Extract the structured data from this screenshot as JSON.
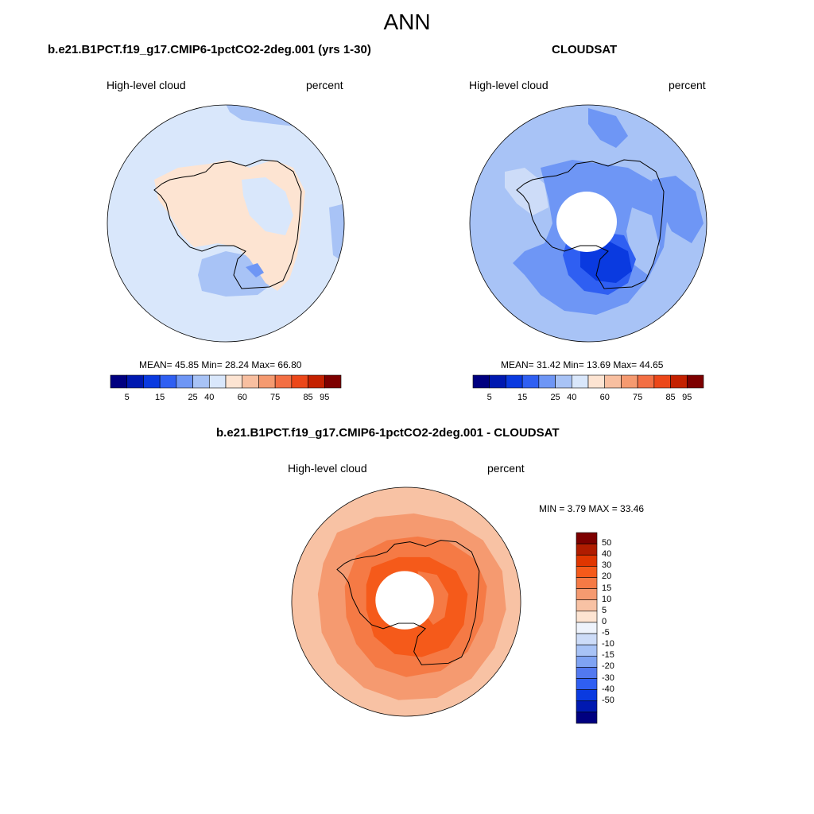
{
  "main_title": "ANN",
  "panels": [
    {
      "title": "b.e21.B1PCT.f19_g17.CMIP6-1pctCO2-2deg.001 (yrs 1-30)",
      "left_label": "High-level cloud",
      "right_label": "percent",
      "stats_text": "MEAN=  45.85  Min=  28.24  Max=  66.80",
      "mean": 45.85,
      "min": 28.24,
      "max": 66.8
    },
    {
      "title": "CLOUDSAT",
      "left_label": "High-level cloud",
      "right_label": "percent",
      "stats_text": "MEAN=  31.42  Min=  13.69  Max=  44.65",
      "mean": 31.42,
      "min": 13.69,
      "max": 44.65
    },
    {
      "title": "b.e21.B1PCT.f19_g17.CMIP6-1pctCO2-2deg.001 - CLOUDSAT",
      "left_label": "High-level cloud",
      "right_label": "percent",
      "stats_text": "MIN =   3.79 MAX =  33.46",
      "min": 3.79,
      "max": 33.46
    }
  ],
  "colorbar_top": {
    "colors": [
      "#000080",
      "#0019b0",
      "#0a3ae0",
      "#2f5ff2",
      "#6e96f5",
      "#a8c3f6",
      "#d9e7fb",
      "#fde4d2",
      "#f8bfa0",
      "#f59a70",
      "#f36f44",
      "#ec4719",
      "#c42100",
      "#7d0000"
    ],
    "ticks": [
      "5",
      "15",
      "25",
      "40",
      "60",
      "75",
      "85",
      "95"
    ]
  },
  "colorbar_diff": {
    "colors": [
      "#7d0000",
      "#b01c00",
      "#e03600",
      "#f55a1a",
      "#f57a45",
      "#f59a70",
      "#f8c2a4",
      "#fde4d2",
      "#eef3fc",
      "#cddcf8",
      "#a8c3f6",
      "#7fa3f3",
      "#5279f0",
      "#2f5ff2",
      "#0a3ae0",
      "#0019b0",
      "#000080"
    ],
    "ticks": [
      "50",
      "40",
      "30",
      "20",
      "15",
      "10",
      "5",
      "0",
      "-5",
      "-10",
      "-15",
      "-20",
      "-30",
      "-40",
      "-50"
    ]
  },
  "map_colors": {
    "panel1_base": "#d9e7fb",
    "panel1_warm": "#fde4d2",
    "panel1_cool": "#a8c3f6",
    "panel1_cooler": "#6e96f5",
    "panel2_base": "#a8c3f6",
    "panel2_light": "#cddcf8",
    "panel2_mid": "#6e96f5",
    "panel2_dark": "#2f5ff2",
    "panel2_darkest": "#0a3ae0",
    "panel3_base": "#f8c2a4",
    "panel3_mid": "#f59a70",
    "panel3_high": "#f57a45",
    "panel3_top": "#f55a1a",
    "missing": "#ffffff",
    "coast": "#000000"
  }
}
